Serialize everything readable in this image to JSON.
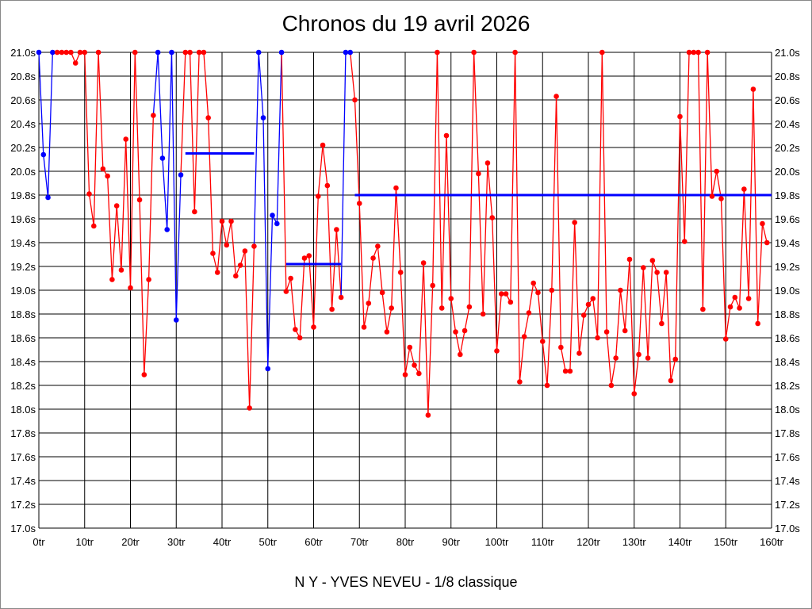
{
  "chart_data": {
    "type": "line",
    "title": "Chronos du 19 avril 2026",
    "subtitle": "N Y - YVES NEVEU - 1/8 classique",
    "xlabel": "",
    "ylabel": "",
    "xlim": [
      0,
      160
    ],
    "ylim": [
      17.0,
      21.0
    ],
    "grid": true,
    "x_ticks": [
      "0tr",
      "10tr",
      "20tr",
      "30tr",
      "40tr",
      "50tr",
      "60tr",
      "70tr",
      "80tr",
      "90tr",
      "100tr",
      "110tr",
      "120tr",
      "130tr",
      "140tr",
      "150tr",
      "160tr"
    ],
    "y_ticks": [
      "17.0s",
      "17.2s",
      "17.4s",
      "17.6s",
      "17.8s",
      "18.0s",
      "18.2s",
      "18.4s",
      "18.6s",
      "18.8s",
      "19.0s",
      "19.2s",
      "19.4s",
      "19.6s",
      "19.8s",
      "20.0s",
      "20.2s",
      "20.4s",
      "20.6s",
      "20.8s",
      "21.0s"
    ],
    "lap_times": [
      21.0,
      20.14,
      19.78,
      21.0,
      21.0,
      21.0,
      21.0,
      21.0,
      20.91,
      21.0,
      21.0,
      19.81,
      19.54,
      21.0,
      20.02,
      19.96,
      19.09,
      19.71,
      19.17,
      20.27,
      19.02,
      21.0,
      19.76,
      18.29,
      19.09,
      20.47,
      21.0,
      20.11,
      19.51,
      21.0,
      18.75,
      19.97,
      21.0,
      21.0,
      19.66,
      21.0,
      21.0,
      20.45,
      19.31,
      19.15,
      19.58,
      19.38,
      19.58,
      19.12,
      19.21,
      19.33,
      18.01,
      19.37,
      21.0,
      20.45,
      18.34,
      19.63,
      19.56,
      21.0,
      18.99,
      19.1,
      18.67,
      18.6,
      19.27,
      19.29,
      18.69,
      19.79,
      20.22,
      19.88,
      18.84,
      19.51,
      18.94,
      21.0,
      21.0,
      20.6,
      19.73,
      18.69,
      18.89,
      19.27,
      19.37,
      18.98,
      18.65,
      18.85,
      19.86,
      19.15,
      18.29,
      18.52,
      18.37,
      18.3,
      19.23,
      17.95,
      19.04,
      21.0,
      18.85,
      20.3,
      18.93,
      18.65,
      18.46,
      18.66,
      18.86,
      21.0,
      19.98,
      18.8,
      20.07,
      19.61,
      18.49,
      18.97,
      18.97,
      18.9,
      21.0,
      18.23,
      18.61,
      18.81,
      19.06,
      18.98,
      18.57,
      18.2,
      19.0,
      20.63,
      18.52,
      18.32,
      18.32,
      19.57,
      18.47,
      18.79,
      18.88,
      18.93,
      18.6,
      21.0,
      18.65,
      18.2,
      18.43,
      19.0,
      18.66,
      19.26,
      18.13,
      18.46,
      19.19,
      18.43,
      19.25,
      19.15,
      18.72,
      19.15,
      18.24,
      18.42,
      20.46,
      19.41,
      21.0,
      21.0,
      21.0,
      18.84,
      21.0,
      19.79,
      20.0,
      19.77,
      18.59,
      18.86,
      18.94,
      18.85,
      19.85,
      18.93,
      20.69,
      18.72,
      19.56,
      19.4
    ],
    "blue_laps": [
      0,
      1,
      2,
      3,
      26,
      27,
      28,
      29,
      30,
      31,
      48,
      49,
      50,
      51,
      52,
      53,
      67,
      68
    ],
    "averages": [
      {
        "from": 32,
        "to": 47,
        "value": 20.15
      },
      {
        "from": 54,
        "to": 66,
        "value": 19.22
      },
      {
        "from": 69,
        "to": 160,
        "value": 19.8
      }
    ],
    "colors": {
      "main": "#ff0000",
      "highlight": "#0000ff",
      "average": "#0000ff",
      "grid": "#000000"
    }
  }
}
